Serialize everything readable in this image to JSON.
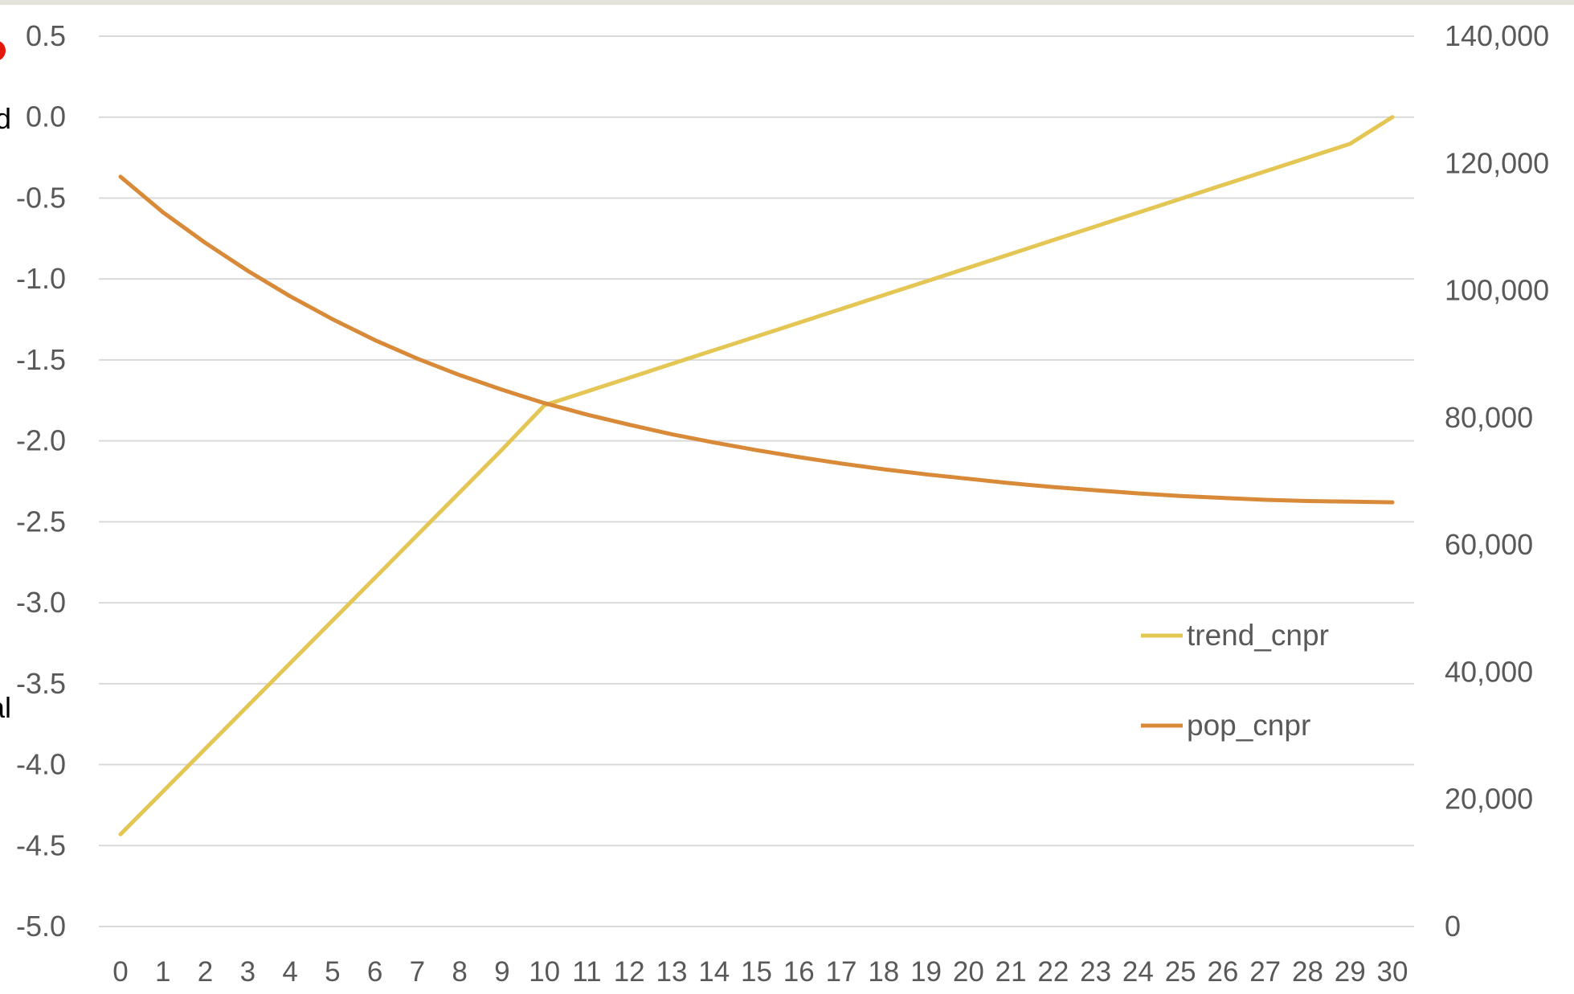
{
  "chart_data": {
    "type": "line",
    "title": "",
    "xlabel": "",
    "ylabel_left": "",
    "ylabel_right": "",
    "x": [
      0,
      1,
      2,
      3,
      4,
      5,
      6,
      7,
      8,
      9,
      10,
      11,
      12,
      13,
      14,
      15,
      16,
      17,
      18,
      19,
      20,
      21,
      22,
      23,
      24,
      25,
      26,
      27,
      28,
      29,
      30
    ],
    "x_tick_labels": [
      "0",
      "1",
      "2",
      "3",
      "4",
      "5",
      "6",
      "7",
      "8",
      "9",
      "10",
      "11",
      "12",
      "13",
      "14",
      "15",
      "16",
      "17",
      "18",
      "19",
      "20",
      "21",
      "22",
      "23",
      "24",
      "25",
      "26",
      "27",
      "28",
      "29",
      "30"
    ],
    "ylim_left": [
      -5.0,
      0.5
    ],
    "left_tick_labels": [
      "0.5",
      "0.0",
      "-0.5",
      "-1.0",
      "-1.5",
      "-2.0",
      "-2.5",
      "-3.0",
      "-3.5",
      "-4.0",
      "-4.5",
      "-5.0"
    ],
    "left_tick_values": [
      0.5,
      0.0,
      -0.5,
      -1.0,
      -1.5,
      -2.0,
      -2.5,
      -3.0,
      -3.5,
      -4.0,
      -4.5,
      -5.0
    ],
    "ylim_right": [
      0,
      140000
    ],
    "right_tick_labels": [
      "140,000",
      "120,000",
      "100,000",
      "80,000",
      "60,000",
      "40,000",
      "20,000",
      "0"
    ],
    "right_tick_values": [
      140000,
      120000,
      100000,
      80000,
      60000,
      40000,
      20000,
      0
    ],
    "grid": true,
    "legend_position": "right",
    "series": [
      {
        "name": "trend_cnpr",
        "axis": "left",
        "color": "#e4c654",
        "values": [
          -4.43,
          -4.166,
          -3.902,
          -3.638,
          -3.374,
          -3.11,
          -2.846,
          -2.582,
          -2.318,
          -2.054,
          -1.78,
          -1.695,
          -1.61,
          -1.525,
          -1.44,
          -1.355,
          -1.27,
          -1.185,
          -1.1,
          -1.015,
          -0.93,
          -0.845,
          -0.76,
          -0.675,
          -0.59,
          -0.505,
          -0.42,
          -0.335,
          -0.25,
          -0.165,
          -0.0
        ]
      },
      {
        "name": "pop_cnpr",
        "axis": "right",
        "color": "#d88a38",
        "values": [
          117900,
          112300,
          107500,
          103100,
          99100,
          95500,
          92200,
          89300,
          86700,
          84400,
          82300,
          80500,
          78900,
          77400,
          76100,
          74900,
          73800,
          72800,
          71900,
          71100,
          70400,
          69700,
          69100,
          68600,
          68100,
          67700,
          67400,
          67100,
          66900,
          66800,
          66700
        ]
      }
    ]
  },
  "clipped_left_labels": [
    {
      "text": "d"
    },
    {
      "text": "al"
    }
  ],
  "marker_color": "#e3170a"
}
